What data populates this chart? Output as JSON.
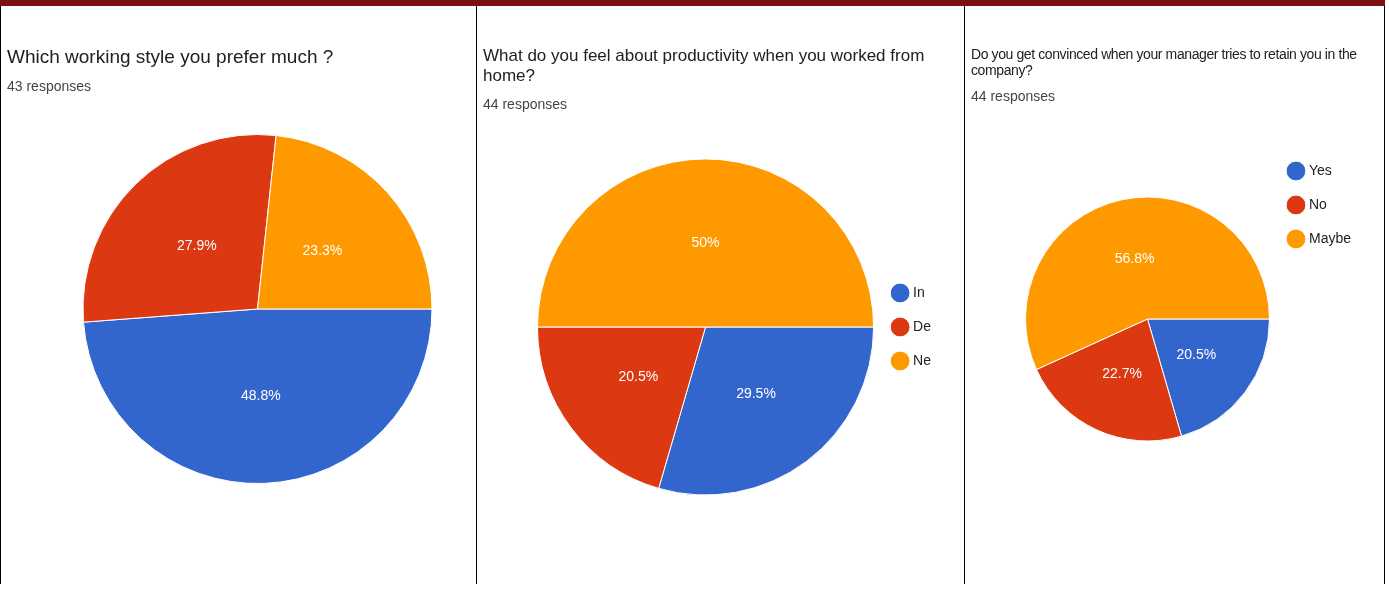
{
  "chart_data": [
    {
      "type": "pie",
      "title": "Which working style you prefer much ?",
      "subtitle": "43 responses",
      "categories": [
        null,
        null,
        null
      ],
      "values": [
        48.8,
        27.9,
        23.3
      ],
      "colors": [
        "#3366cc",
        "#dc3912",
        "#ff9900"
      ],
      "value_labels": [
        "48.8%",
        "27.9%",
        "23.3%"
      ],
      "legend": false
    },
    {
      "type": "pie",
      "title": "What do you feel about productivity when you worked from home?",
      "subtitle": "44 responses",
      "categories": [
        "In",
        "De",
        "Ne"
      ],
      "values": [
        29.5,
        20.5,
        50
      ],
      "colors": [
        "#3366cc",
        "#dc3912",
        "#ff9900"
      ],
      "value_labels": [
        "29.5%",
        "20.5%",
        "50%"
      ],
      "legend": "right"
    },
    {
      "type": "pie",
      "title": "Do you get convinced when your manager tries to retain you in the company?",
      "subtitle": "44 responses",
      "categories": [
        "Yes",
        "No",
        "Maybe"
      ],
      "values": [
        20.5,
        22.7,
        56.8
      ],
      "colors": [
        "#3366cc",
        "#dc3912",
        "#ff9900"
      ],
      "value_labels": [
        "20.5%",
        "22.7%",
        "56.8%"
      ],
      "legend": "top right"
    }
  ]
}
